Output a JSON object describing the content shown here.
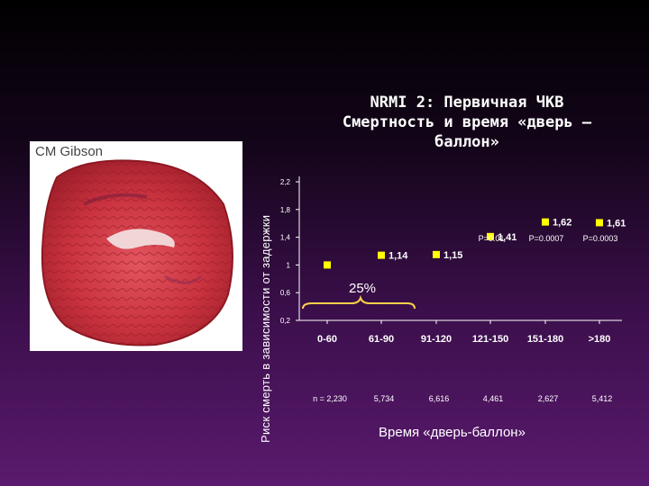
{
  "photo": {
    "caption": "CM Gibson"
  },
  "title": {
    "line1": "NRMI 2: Первичная ЧКВ",
    "line2": "Смертность и время «дверь –",
    "line3": "баллон»"
  },
  "annotation": {
    "bracket_text": "25%"
  },
  "chart_data": {
    "type": "scatter",
    "categories": [
      "0-60",
      "61-90",
      "91-120",
      "121-150",
      "151-180",
      ">180"
    ],
    "values": [
      1.0,
      1.14,
      1.15,
      1.41,
      1.62,
      1.61
    ],
    "value_labels": [
      "",
      "1,14",
      "1,15",
      "1,41",
      "1,62",
      "1,61"
    ],
    "p_values": [
      "",
      "",
      "",
      "P=0.01",
      "P=0.0007",
      "P=0.0003"
    ],
    "n_labels": [
      "n = 2,230",
      "5,734",
      "6,616",
      "4,461",
      "2,627",
      "5,412"
    ],
    "yticks": [
      "2,2",
      "1,8",
      "1,4",
      "1",
      "0,6",
      "0,2"
    ],
    "ylim": [
      0.2,
      2.2
    ],
    "ylabel": "Риск смерть в зависимости от задержки",
    "xlabel": "Время «дверь-баллон»",
    "marker_color": "#ffff00",
    "grid": false
  }
}
